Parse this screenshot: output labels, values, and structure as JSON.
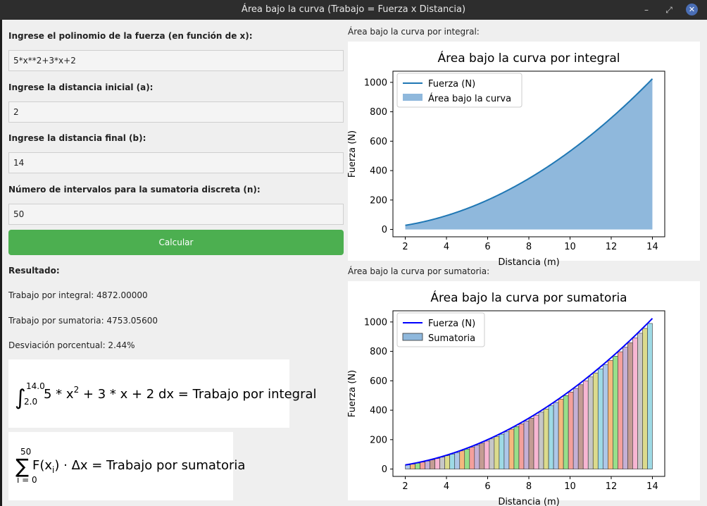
{
  "window": {
    "title": "Área bajo la curva (Trabajo = Fuerza x Distancia)",
    "minimize_glyph": "–",
    "restore_glyph": "⤢",
    "close_glyph": "✕"
  },
  "form": {
    "poly_label": "Ingrese el polinomio de la fuerza (en función de x):",
    "poly_value": "5*x**2+3*x+2",
    "a_label": "Ingrese la distancia inicial (a):",
    "a_value": "2",
    "b_label": "Ingrese la distancia final (b):",
    "b_value": "14",
    "n_label": "Número de intervalos para la sumatoria discreta (n):",
    "n_value": "50",
    "calc_label": "Calcular",
    "calc_color": "#4caf50"
  },
  "results": {
    "heading": "Resultado:",
    "integral_text": "Trabajo por integral: 4872.00000",
    "sum_text": "Trabajo por sumatoria: 4753.05600",
    "deviation_text": "Desviación porcentual: 2.44%"
  },
  "formulas": {
    "integral_lower": "2.0",
    "integral_upper": "14.0",
    "integral_body": "5 * x",
    "integral_exp": "2",
    "integral_tail": " + 3 * x + 2 dx = Trabajo por integral",
    "sum_upper": "50",
    "sum_lower": "i = 0",
    "sum_body": "F(x",
    "sum_sub": "i",
    "sum_tail": ") · Δx = Trabajo por sumatoria"
  },
  "charts": {
    "integral_section_label": "Área bajo la curva por integral:",
    "sum_section_label": "Área bajo la curva por sumatoria:"
  },
  "chart_data": [
    {
      "type": "area",
      "title": "Área bajo la curva por integral",
      "xlabel": "Distancia (m)",
      "ylabel": "Fuerza (N)",
      "function": "5*x**2+3*x+2",
      "x_range": [
        2,
        14
      ],
      "xlim": [
        1.4,
        14.6
      ],
      "ylim": [
        -50,
        1076
      ],
      "xticks": [
        2,
        4,
        6,
        8,
        10,
        12,
        14
      ],
      "yticks": [
        0,
        200,
        400,
        600,
        800,
        1000
      ],
      "grid": false,
      "legend_placement": "top-left",
      "series": [
        {
          "name": "Fuerza (N)",
          "kind": "line",
          "color": "#1f77b4"
        },
        {
          "name": "Área bajo la curva",
          "kind": "fill",
          "color": "#8fb8dc"
        }
      ]
    },
    {
      "type": "bar",
      "title": "Área bajo la curva por sumatoria",
      "xlabel": "Distancia (m)",
      "ylabel": "Fuerza (N)",
      "function": "5*x**2+3*x+2",
      "x_range": [
        2,
        14
      ],
      "intervals": 50,
      "xlim": [
        1.4,
        14.6
      ],
      "ylim": [
        -50,
        1076
      ],
      "xticks": [
        2,
        4,
        6,
        8,
        10,
        12,
        14
      ],
      "yticks": [
        0,
        200,
        400,
        600,
        800,
        1000
      ],
      "grid": false,
      "legend_placement": "top-left",
      "bar_palette": [
        "#aec7e8",
        "#f5b97e",
        "#98df8a",
        "#f4a09c",
        "#c5b0d5",
        "#c49c94",
        "#f7b6d2",
        "#c7c7c7",
        "#dbdb8d",
        "#9edae5"
      ],
      "series": [
        {
          "name": "Fuerza (N)",
          "kind": "line",
          "color": "#0000ff"
        },
        {
          "name": "Sumatoria",
          "kind": "bars",
          "color": "#8fb8dc"
        }
      ]
    }
  ]
}
